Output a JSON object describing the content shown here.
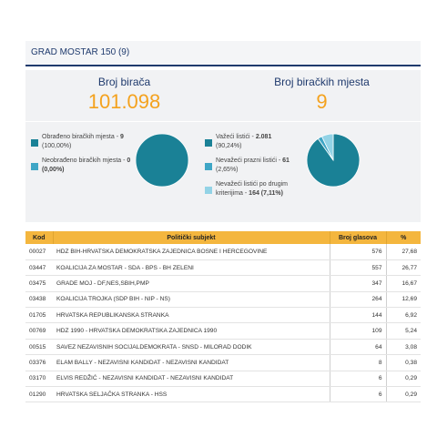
{
  "header": {
    "title": "GRAD MOSTAR 150 (9)"
  },
  "summary": {
    "voters_label": "Broj birača",
    "voters_value": "101.098",
    "stations_label": "Broj biračkih mjesta",
    "stations_value": "9"
  },
  "colors": {
    "primary": "#1a8196",
    "secondary": "#3fa6c6",
    "tertiary": "#93d3e6",
    "accent": "#f4a21e",
    "header_bg": "#f4b63e",
    "title_border": "#1f3a6d"
  },
  "stations_chart": {
    "items": [
      {
        "label": "Obrađeno biračkih mjesta - ",
        "value": "9",
        "percent": "(100,00%)",
        "fraction": 1.0,
        "color": "#1a8196"
      },
      {
        "label": "Neobrađeno biračkih mjesta - ",
        "value": "0 (0,00%)",
        "percent": "",
        "fraction": 0.0,
        "color": "#3fa6c6"
      }
    ]
  },
  "ballots_chart": {
    "items": [
      {
        "label": "Važeći listići - ",
        "value": "2.081",
        "percent": "(90,24%)",
        "fraction": 0.9024,
        "color": "#1a8196"
      },
      {
        "label": "Nevažeći prazni listići - ",
        "value": "61",
        "percent": "(2,65%)",
        "fraction": 0.0265,
        "color": "#3fa6c6"
      },
      {
        "label": "Nevažeći listići po drugim kriterijima - ",
        "value": "164 (7,11%)",
        "percent": "",
        "fraction": 0.0711,
        "color": "#93d3e6"
      }
    ]
  },
  "table": {
    "headers": [
      "Kod",
      "Politički subjekt",
      "Broj glasova",
      "%"
    ],
    "rows": [
      [
        "00027",
        "HDZ BIH-HRVATSKA DEMOKRATSKA ZAJEDNICA BOSNE I HERCEGOVINE",
        "576",
        "27,68"
      ],
      [
        "03447",
        "KOALICIJA ZA MOSTAR - SDA - BPS - BH ZELENI",
        "557",
        "26,77"
      ],
      [
        "03475",
        "GRADE MOJ - DF,NES,SBIH,PMP",
        "347",
        "16,67"
      ],
      [
        "03438",
        "KOALICIJA TROJKA (SDP BIH - NIP - NS)",
        "264",
        "12,69"
      ],
      [
        "01705",
        "HRVATSKA REPUBLIKANSKA STRANKA",
        "144",
        "6,92"
      ],
      [
        "00769",
        "HDZ 1990 - HRVATSKA DEMOKRATSKA ZAJEDNICA 1990",
        "109",
        "5,24"
      ],
      [
        "00515",
        "SAVEZ NEZAVISNIH SOCIJALDEMOKRATA - SNSD - MILORAD DODIK",
        "64",
        "3,08"
      ],
      [
        "03376",
        "ELAM BALLY - NEZAVISNI KANDIDAT - NEZAVISNI KANDIDAT",
        "8",
        "0,38"
      ],
      [
        "03170",
        "ELVIS REDŽIĆ - NEZAVISNI KANDIDAT - NEZAVISNI KANDIDAT",
        "6",
        "0,29"
      ],
      [
        "01290",
        "HRVATSKA SELJAČKA STRANKA - HSS",
        "6",
        "0,29"
      ]
    ]
  }
}
